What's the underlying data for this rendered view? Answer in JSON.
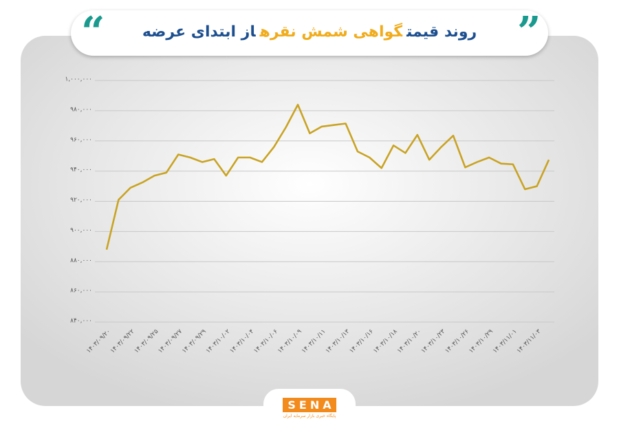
{
  "chart_data": {
    "type": "line",
    "title": [
      "روند قیمت",
      "گواهی شمش نقره",
      "از ابتدای عرضه"
    ],
    "title_colors": [
      "#1d4f8f",
      "#f0ac1c",
      "#1d4f8f"
    ],
    "categories": [
      "۱۴۰۳/۰۹/۲۰",
      null,
      "۱۴۰۳/۰۹/۲۲",
      null,
      "۱۴۰۳/۰۹/۲۵",
      null,
      "۱۴۰۳/۰۹/۲۷",
      null,
      "۱۴۰۳/۰۹/۲۹",
      null,
      "۱۴۰۳/۱۰/۰۲",
      null,
      "۱۴۰۳/۱۰/۰۴",
      null,
      "۱۴۰۳/۱۰/۰۶",
      null,
      "۱۴۰۳/۱۰/۰۹",
      null,
      "۱۴۰۳/۱۰/۱۱",
      null,
      "۱۴۰۳/۱۰/۱۳",
      null,
      "۱۴۰۳/۱۰/۱۶",
      null,
      "۱۴۰۳/۱۰/۱۸",
      null,
      "۱۴۰۳/۱۰/۲۰",
      null,
      "۱۴۰۳/۱۰/۲۳",
      null,
      "۱۴۰۳/۱۰/۲۶",
      null,
      "۱۴۰۳/۱۰/۲۹",
      null,
      "۱۴۰۳/۱۱/۰۱",
      null,
      "۱۴۰۳/۱۱/۰۳",
      null
    ],
    "values": [
      888000,
      921000,
      929000,
      932500,
      937000,
      939000,
      951000,
      949000,
      946000,
      948000,
      937000,
      949000,
      949000,
      946000,
      956000,
      969000,
      984000,
      965000,
      969500,
      970500,
      971500,
      953000,
      949000,
      942000,
      957000,
      952000,
      964000,
      947500,
      956000,
      963500,
      942500,
      946000,
      949000,
      945000,
      944500,
      928000,
      930000,
      947500
    ],
    "color": "#c9a322",
    "ylim": [
      840000,
      1000000
    ],
    "yticks": [
      {
        "value": 840000,
        "label": "۸۴۰,۰۰۰"
      },
      {
        "value": 860000,
        "label": "۸۶۰,۰۰۰"
      },
      {
        "value": 880000,
        "label": "۸۸۰,۰۰۰"
      },
      {
        "value": 900000,
        "label": "۹۰۰,۰۰۰"
      },
      {
        "value": 920000,
        "label": "۹۲۰,۰۰۰"
      },
      {
        "value": 940000,
        "label": "۹۴۰,۰۰۰"
      },
      {
        "value": 960000,
        "label": "۹۶۰,۰۰۰"
      },
      {
        "value": 980000,
        "label": "۹۸۰,۰۰۰"
      },
      {
        "value": 1000000,
        "label": "۱,۰۰۰,۰۰۰"
      }
    ],
    "grid": true
  },
  "logo": {
    "name": "SENA",
    "tagline": "پایگاه خبری بازار سرمایه ایران"
  }
}
